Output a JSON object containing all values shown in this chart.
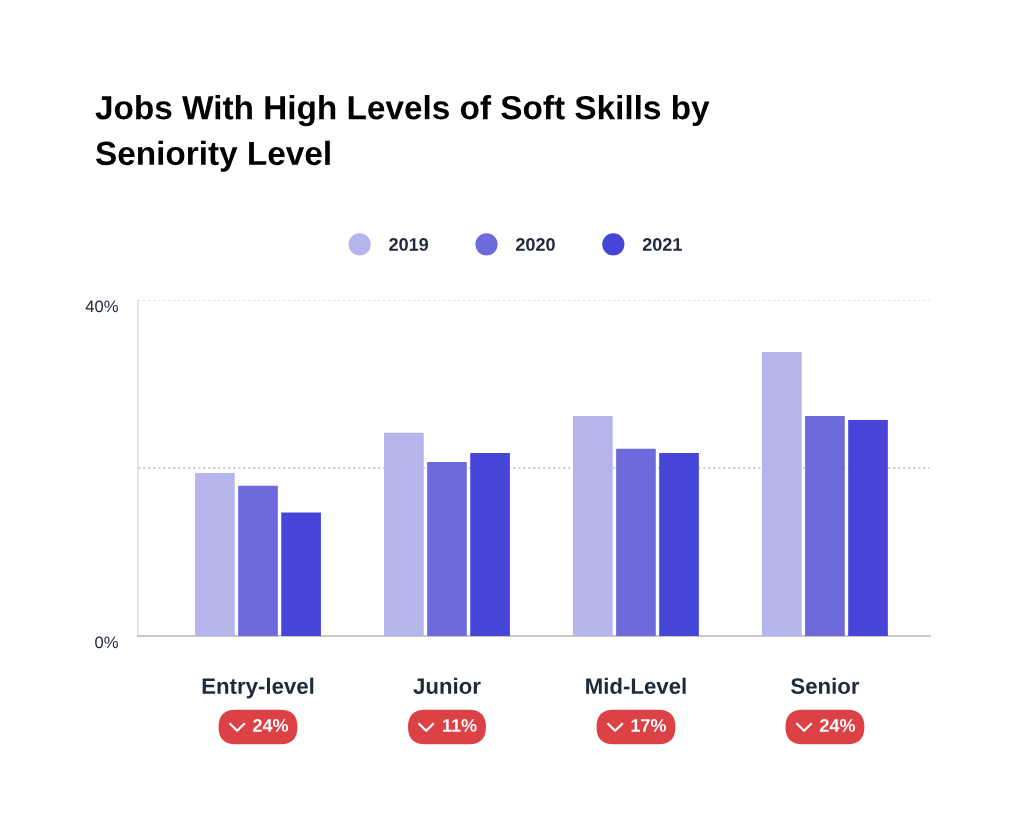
{
  "chart_data": {
    "type": "bar",
    "title": "Jobs With High Levels of Soft Skills by Seniority Level",
    "categories": [
      "Entry-level",
      "Junior",
      "Mid-Level",
      "Senior"
    ],
    "series": [
      {
        "name": "2019",
        "color": "#b5b5ec",
        "values": [
          19.4,
          24.2,
          26.2,
          33.8
        ]
      },
      {
        "name": "2020",
        "color": "#6e6ade",
        "values": [
          17.9,
          20.7,
          22.3,
          26.2
        ]
      },
      {
        "name": "2021",
        "color": "#4744d8",
        "values": [
          14.7,
          21.8,
          21.8,
          25.7
        ]
      }
    ],
    "ylim": [
      0,
      40
    ],
    "yticks": [
      {
        "value": 0,
        "label": "0%"
      },
      {
        "value": 20,
        "label": null
      },
      {
        "value": 40,
        "label": "40%"
      }
    ],
    "grid": "y",
    "legend": "top",
    "annotations": [
      "24%",
      "11%",
      "17%",
      "24%"
    ]
  }
}
